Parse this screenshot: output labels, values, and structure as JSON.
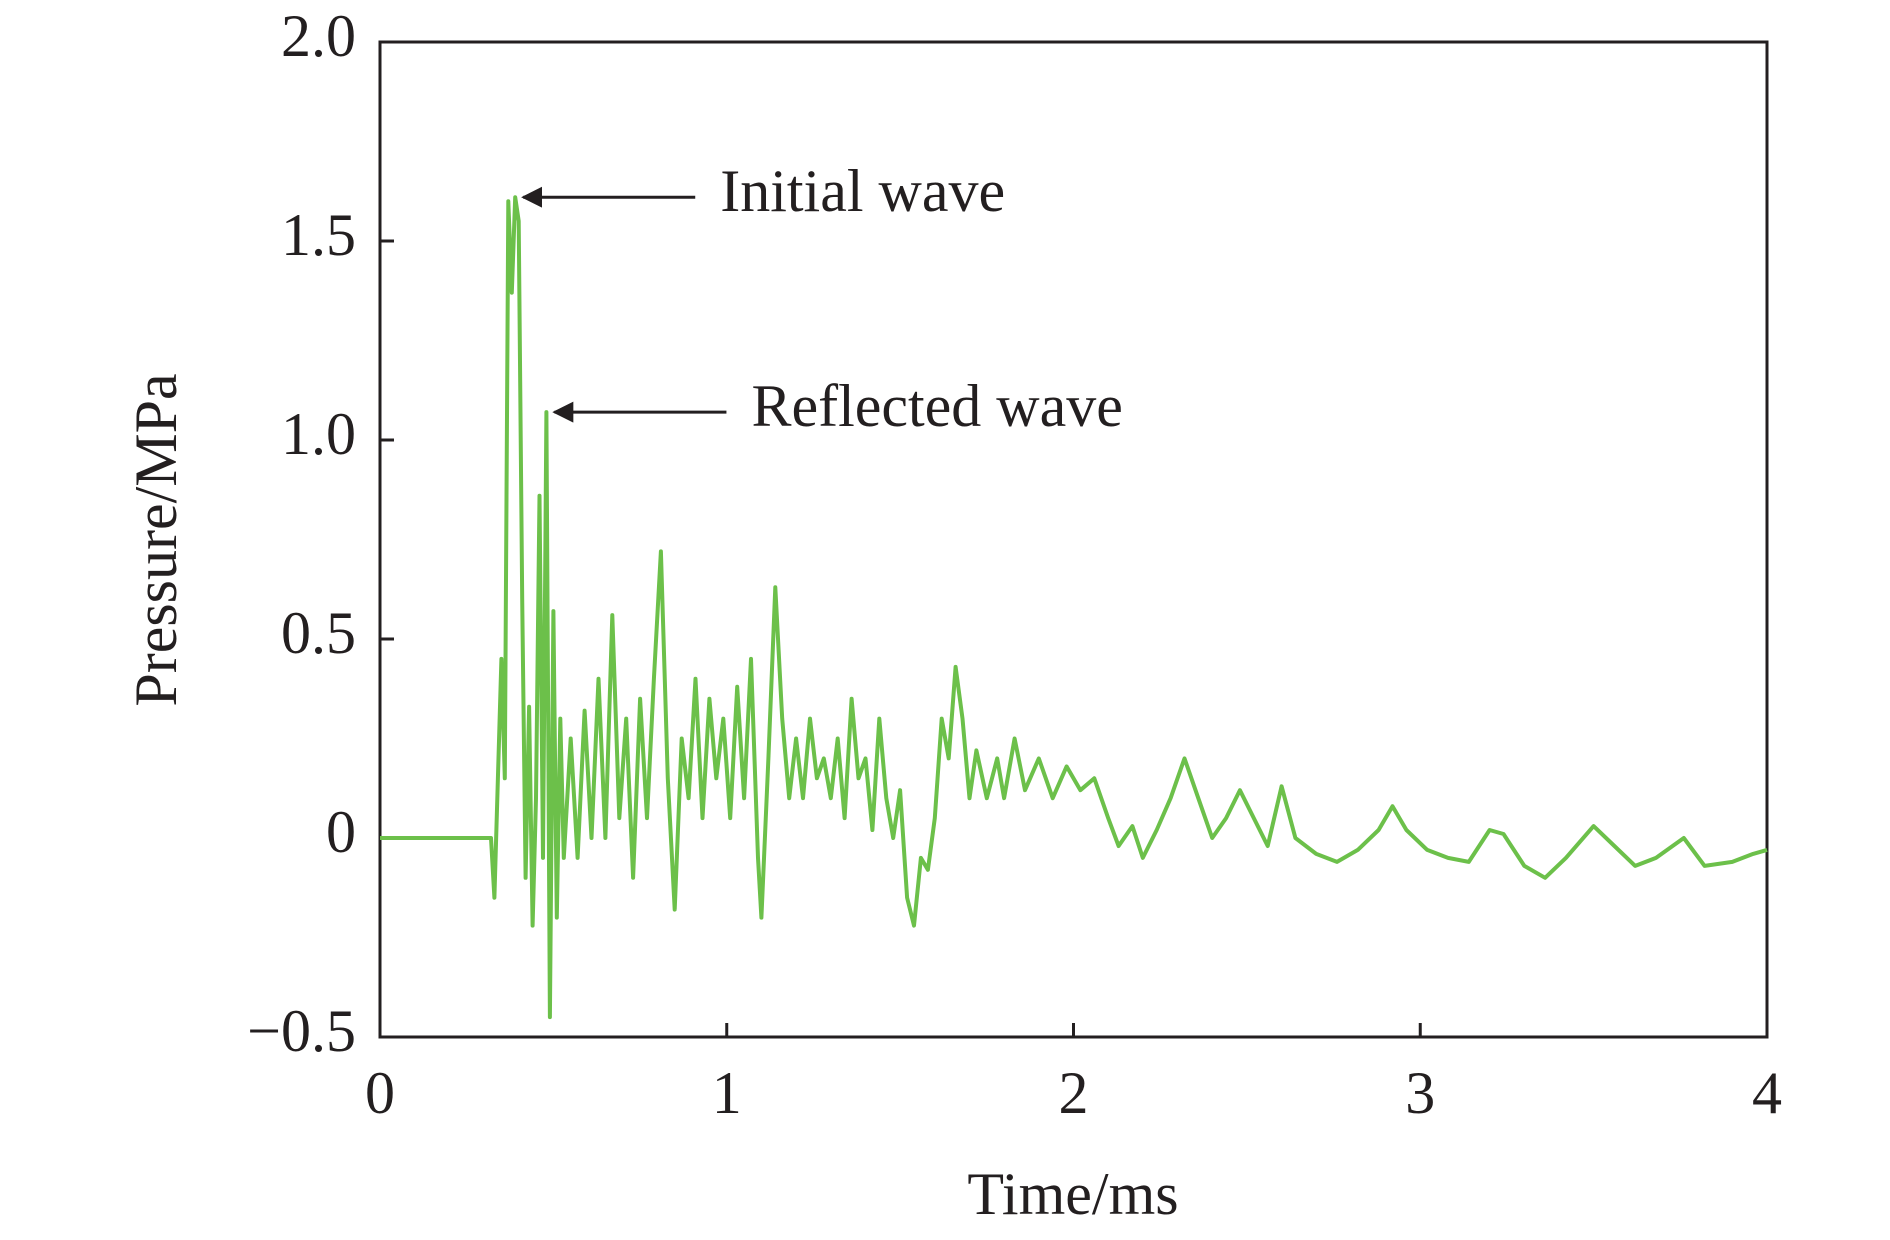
{
  "chart_data": {
    "type": "line",
    "xlabel": "Time/ms",
    "ylabel": "Pressure/MPa",
    "xlim": [
      0,
      4
    ],
    "ylim": [
      -0.5,
      2.0
    ],
    "xticks": [
      0,
      1,
      2,
      3,
      4
    ],
    "yticks": [
      {
        "value": -0.5,
        "label": "−0.5"
      },
      0,
      0.5,
      {
        "value": 1.0,
        "label": "1.0"
      },
      1.5,
      {
        "value": 2.0,
        "label": "2.0"
      }
    ],
    "grid": false,
    "series": [
      {
        "color": "#6cc04a",
        "x": [
          0,
          0.32,
          0.33,
          0.35,
          0.36,
          0.37,
          0.38,
          0.39,
          0.4,
          0.41,
          0.42,
          0.43,
          0.44,
          0.45,
          0.46,
          0.47,
          0.48,
          0.49,
          0.5,
          0.51,
          0.52,
          0.53,
          0.55,
          0.57,
          0.59,
          0.61,
          0.63,
          0.65,
          0.67,
          0.69,
          0.71,
          0.73,
          0.75,
          0.77,
          0.79,
          0.81,
          0.83,
          0.85,
          0.87,
          0.89,
          0.91,
          0.93,
          0.95,
          0.97,
          0.99,
          1.01,
          1.03,
          1.05,
          1.07,
          1.09,
          1.1,
          1.12,
          1.14,
          1.16,
          1.18,
          1.2,
          1.22,
          1.24,
          1.26,
          1.28,
          1.3,
          1.32,
          1.34,
          1.36,
          1.38,
          1.4,
          1.42,
          1.44,
          1.46,
          1.48,
          1.5,
          1.52,
          1.54,
          1.56,
          1.58,
          1.6,
          1.62,
          1.64,
          1.66,
          1.68,
          1.7,
          1.72,
          1.75,
          1.78,
          1.8,
          1.83,
          1.86,
          1.9,
          1.94,
          1.98,
          2.02,
          2.06,
          2.1,
          2.13,
          2.17,
          2.2,
          2.24,
          2.28,
          2.32,
          2.36,
          2.4,
          2.44,
          2.48,
          2.52,
          2.56,
          2.6,
          2.64,
          2.7,
          2.76,
          2.82,
          2.88,
          2.92,
          2.96,
          3.02,
          3.08,
          3.14,
          3.2,
          3.24,
          3.3,
          3.36,
          3.42,
          3.5,
          3.56,
          3.62,
          3.68,
          3.76,
          3.82,
          3.9,
          3.96,
          4.0
        ],
        "values": [
          0,
          0,
          -0.15,
          0.45,
          0.15,
          1.6,
          1.37,
          1.61,
          1.55,
          0.6,
          -0.1,
          0.33,
          -0.22,
          0.1,
          0.86,
          -0.05,
          1.07,
          -0.45,
          0.57,
          -0.2,
          0.3,
          -0.05,
          0.25,
          -0.05,
          0.32,
          0.0,
          0.4,
          0.0,
          0.56,
          0.05,
          0.3,
          -0.1,
          0.35,
          0.05,
          0.4,
          0.72,
          0.15,
          -0.18,
          0.25,
          0.1,
          0.4,
          0.05,
          0.35,
          0.15,
          0.3,
          0.05,
          0.38,
          0.1,
          0.45,
          -0.05,
          -0.2,
          0.2,
          0.63,
          0.3,
          0.1,
          0.25,
          0.1,
          0.3,
          0.15,
          0.2,
          0.1,
          0.25,
          0.05,
          0.35,
          0.15,
          0.2,
          0.02,
          0.3,
          0.1,
          0.0,
          0.12,
          -0.15,
          -0.22,
          -0.05,
          -0.08,
          0.05,
          0.3,
          0.2,
          0.43,
          0.3,
          0.1,
          0.22,
          0.1,
          0.2,
          0.1,
          0.25,
          0.12,
          0.2,
          0.1,
          0.18,
          0.12,
          0.15,
          0.05,
          -0.02,
          0.03,
          -0.05,
          0.02,
          0.1,
          0.2,
          0.1,
          0.0,
          0.05,
          0.12,
          0.05,
          -0.02,
          0.13,
          0.0,
          -0.04,
          -0.06,
          -0.03,
          0.02,
          0.08,
          0.02,
          -0.03,
          -0.05,
          -0.06,
          0.02,
          0.01,
          -0.07,
          -0.1,
          -0.05,
          0.03,
          -0.02,
          -0.07,
          -0.05,
          0.0,
          -0.07,
          -0.06,
          -0.04,
          -0.03
        ]
      }
    ],
    "annotations": [
      {
        "text": "Initial wave",
        "x": 0.39,
        "y": 1.61
      },
      {
        "text": "Reflected wave",
        "x": 0.48,
        "y": 1.07
      }
    ]
  }
}
